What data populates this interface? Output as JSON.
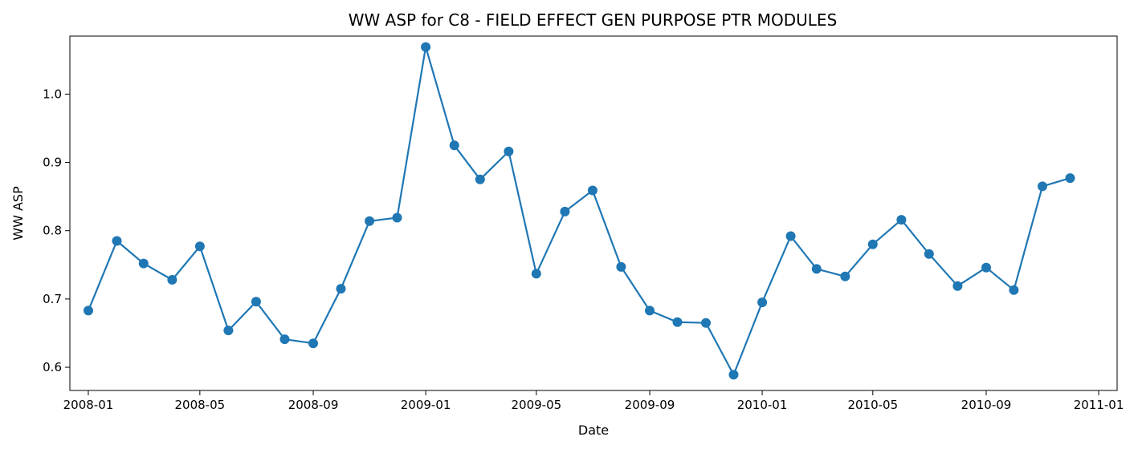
{
  "chart_data": {
    "type": "line",
    "title": "WW ASP for C8 - FIELD EFFECT GEN PURPOSE PTR MODULES",
    "xlabel": "Date",
    "ylabel": "WW ASP",
    "grid": false,
    "legend": false,
    "color": "#1f77b4",
    "x_ticks": [
      "2008-01",
      "2008-05",
      "2008-09",
      "2009-01",
      "2009-05",
      "2009-09",
      "2010-01",
      "2010-05",
      "2010-09",
      "2011-01"
    ],
    "y_ticks": [
      0.6,
      0.7,
      0.8,
      0.9,
      1.0
    ],
    "y_tick_labels": [
      "0.6",
      "0.7",
      "0.8",
      "0.9",
      "1.0"
    ],
    "xlim": [
      "2007-12-12",
      "2011-01-21"
    ],
    "ylim": [
      0.566,
      1.085
    ],
    "series": [
      {
        "x": [
          "2008-01",
          "2008-02",
          "2008-03",
          "2008-04",
          "2008-05",
          "2008-06",
          "2008-07",
          "2008-08",
          "2008-09",
          "2008-10",
          "2008-11",
          "2008-12",
          "2009-01",
          "2009-02",
          "2009-03",
          "2009-04",
          "2009-05",
          "2009-06",
          "2009-07",
          "2009-08",
          "2009-09",
          "2009-10",
          "2009-11",
          "2009-12",
          "2010-01",
          "2010-02",
          "2010-03",
          "2010-04",
          "2010-05",
          "2010-06",
          "2010-07",
          "2010-08",
          "2010-09",
          "2010-10",
          "2010-11",
          "2010-12"
        ],
        "values": [
          0.683,
          0.785,
          0.752,
          0.728,
          0.777,
          0.654,
          0.696,
          0.641,
          0.635,
          0.715,
          0.814,
          0.819,
          1.069,
          0.925,
          0.875,
          0.916,
          0.737,
          0.828,
          0.859,
          0.747,
          0.683,
          0.666,
          0.665,
          0.589,
          0.695,
          0.792,
          0.744,
          0.733,
          0.78,
          0.816,
          0.766,
          0.719,
          0.746,
          0.713,
          0.865,
          0.877
        ]
      }
    ]
  }
}
